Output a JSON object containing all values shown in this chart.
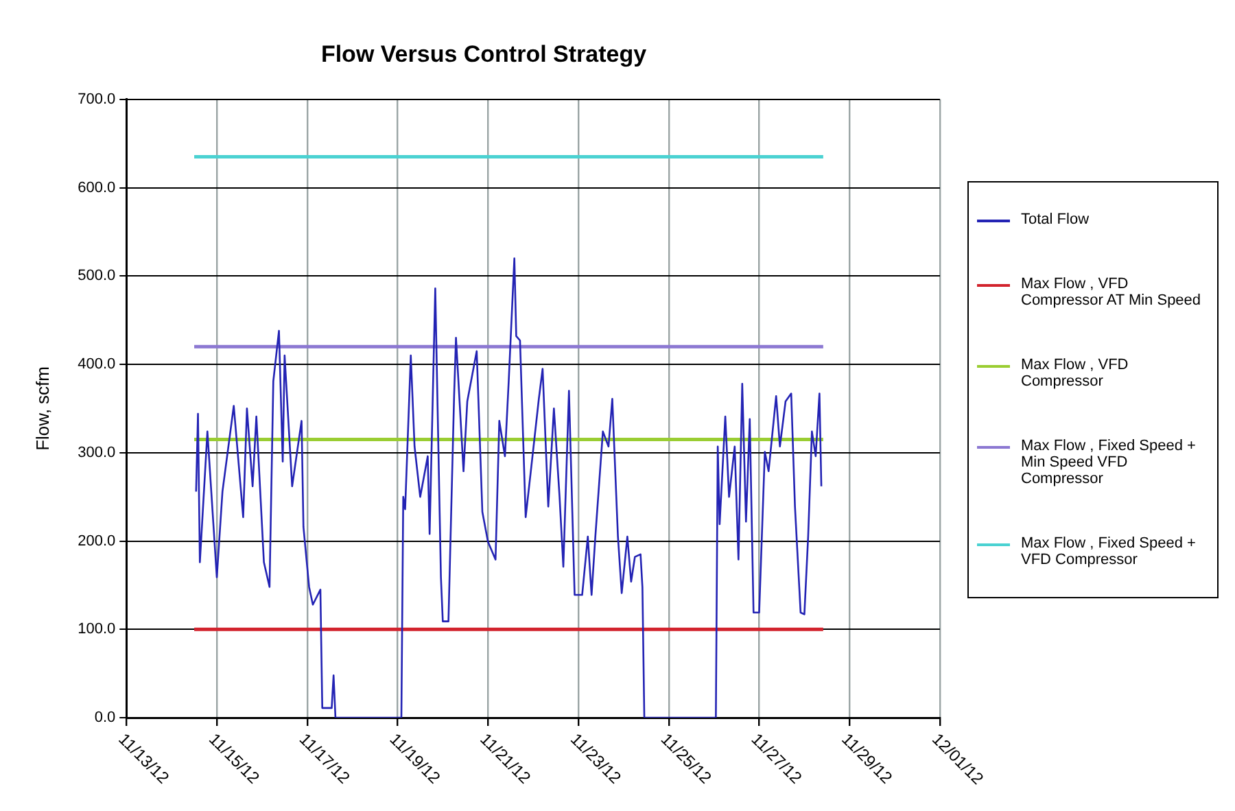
{
  "chart_data": {
    "type": "line",
    "title": "Flow Versus Control Strategy",
    "ylabel": "Flow, scfm",
    "legend": "right",
    "grid": true,
    "marker": "none",
    "xlim": [
      "--11-13",
      "--12-01"
    ],
    "xticks": [
      {
        "value": "--11-13",
        "label": "11/13/12"
      },
      {
        "value": "--11-15",
        "label": "11/15/12"
      },
      {
        "value": "--11-17",
        "label": "11/17/12"
      },
      {
        "value": "--11-19",
        "label": "11/19/12"
      },
      {
        "value": "--11-21",
        "label": "11/21/12"
      },
      {
        "value": "--11-23",
        "label": "11/23/12"
      },
      {
        "value": "--11-25",
        "label": "11/25/12"
      },
      {
        "value": "--11-27",
        "label": "11/27/12"
      },
      {
        "value": "--11-29",
        "label": "11/29/12"
      },
      {
        "value": "--12-01",
        "label": "12/01/12"
      }
    ],
    "ylim": [
      0,
      700
    ],
    "yticks": [
      {
        "value": 0,
        "label": "0.0"
      },
      {
        "value": 100,
        "label": "100.0"
      },
      {
        "value": 200,
        "label": "200.0"
      },
      {
        "value": 300,
        "label": "300.0"
      },
      {
        "value": 400,
        "label": "400.0"
      },
      {
        "value": 500,
        "label": "500.0"
      },
      {
        "value": 600,
        "label": "600.0"
      },
      {
        "value": 700,
        "label": "700.0"
      }
    ],
    "series": [
      {
        "name": "Total Flow",
        "color": "#2323b4",
        "x": [
          "--11-14T13:00",
          "--11-14T14:00",
          "--11-14T15:00",
          "--11-14T19:00",
          "--11-15T00:00",
          "--11-15T03:00",
          "--11-15T09:00",
          "--11-15T14:00",
          "--11-15T16:00",
          "--11-15T19:00",
          "--11-15T21:00",
          "--11-16T01:00",
          "--11-16T04:00",
          "--11-16T06:00",
          "--11-16T09:00",
          "--11-16T11:00",
          "--11-16T12:00",
          "--11-16T16:00",
          "--11-16T21:00",
          "--11-16T22:00",
          "--11-17T01:00",
          "--11-17T03:00",
          "--11-17T07:00",
          "--11-17T08:00",
          "--11-17T13:00",
          "--11-17T14:00",
          "--11-17T15:00",
          "--11-19T02:00",
          "--11-19T03:00",
          "--11-19T04:00",
          "--11-19T07:00",
          "--11-19T09:00",
          "--11-19T12:00",
          "--11-19T16:00",
          "--11-19T17:00",
          "--11-19T20:00",
          "--11-19T23:00",
          "--11-20T00:00",
          "--11-20T03:00",
          "--11-20T06:00",
          "--11-20T07:00",
          "--11-20T11:00",
          "--11-20T13:00",
          "--11-20T18:00",
          "--11-20T21:00",
          "--11-21T00:00",
          "--11-21T04:00",
          "--11-21T06:00",
          "--11-21T09:00",
          "--11-21T11:00",
          "--11-21T14:00",
          "--11-21T15:00",
          "--11-21T17:00",
          "--11-21T20:00",
          "--11-21T23:00",
          "--11-22T03:00",
          "--11-22T05:00",
          "--11-22T08:00",
          "--11-22T11:00",
          "--11-22T14:00",
          "--11-22T16:00",
          "--11-22T19:00",
          "--11-22T22:00",
          "--11-23T02:00",
          "--11-23T05:00",
          "--11-23T07:00",
          "--11-23T09:00",
          "--11-23T13:00",
          "--11-23T16:00",
          "--11-23T18:00",
          "--11-23T21:00",
          "--11-23T23:00",
          "--11-24T02:00",
          "--11-24T04:00",
          "--11-24T06:00",
          "--11-24T09:00",
          "--11-24T10:00",
          "--11-24T11:00",
          "--11-26T01:00",
          "--11-26T02:00",
          "--11-26T03:00",
          "--11-26T06:00",
          "--11-26T08:00",
          "--11-26T11:00",
          "--11-26T13:00",
          "--11-26T15:00",
          "--11-26T17:00",
          "--11-26T19:00",
          "--11-26T21:00",
          "--11-27T00:00",
          "--11-27T03:00",
          "--11-27T05:00",
          "--11-27T09:00",
          "--11-27T11:00",
          "--11-27T14:00",
          "--11-27T17:00",
          "--11-27T19:00",
          "--11-27T22:00",
          "--11-28T00:00",
          "--11-28T02:00",
          "--11-28T04:00",
          "--11-28T06:00",
          "--11-28T08:00",
          "--11-28T09:00"
        ],
        "values": [
          256,
          344,
          176,
          324,
          159,
          256,
          353,
          227,
          350,
          262,
          341,
          176,
          148,
          381,
          438,
          290,
          410,
          262,
          336,
          216,
          148,
          128,
          145,
          11,
          11,
          48,
          0,
          0,
          250,
          236,
          410,
          307,
          250,
          296,
          208,
          486,
          159,
          109,
          109,
          364,
          430,
          279,
          358,
          415,
          233,
          199,
          179,
          336,
          296,
          381,
          520,
          432,
          427,
          227,
          284,
          361,
          395,
          239,
          350,
          250,
          171,
          370,
          139,
          139,
          205,
          139,
          205,
          324,
          307,
          361,
          205,
          141,
          205,
          154,
          182,
          185,
          148,
          0,
          0,
          307,
          219,
          341,
          250,
          307,
          179,
          378,
          222,
          338,
          119,
          119,
          301,
          279,
          364,
          307,
          358,
          367,
          239,
          119,
          117,
          205,
          324,
          296,
          367,
          262
        ]
      },
      {
        "name": "Max Flow , VFD Compressor AT Min Speed",
        "color": "#d2232d",
        "x": [
          "--11-14T12:00",
          "--11-28T10:00"
        ],
        "values": [
          100,
          100
        ]
      },
      {
        "name": "Max Flow , VFD Compressor",
        "color": "#9acd32",
        "x": [
          "--11-14T12:00",
          "--11-28T10:00"
        ],
        "values": [
          315,
          315
        ]
      },
      {
        "name": "Max Flow , Fixed Speed + Min Speed VFD Compressor",
        "color": "#8c78d2",
        "x": [
          "--11-14T12:00",
          "--11-28T10:00"
        ],
        "values": [
          420,
          420
        ]
      },
      {
        "name": "Max Flow , Fixed Speed + VFD Compressor",
        "color": "#4bd2d2",
        "x": [
          "--11-14T12:00",
          "--11-28T10:00"
        ],
        "values": [
          635,
          635
        ]
      }
    ]
  }
}
